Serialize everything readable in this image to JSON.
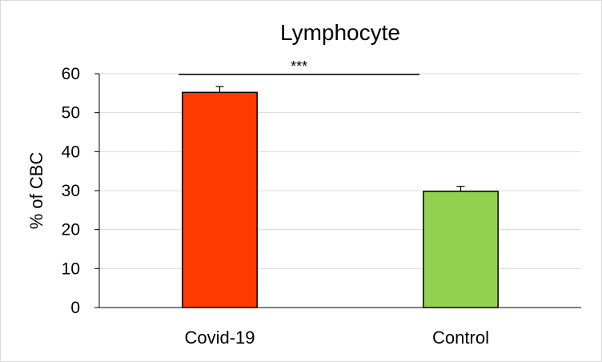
{
  "chart_data": {
    "type": "bar",
    "title": "Lymphocyte",
    "ylabel": "% of CBC",
    "xlabel": "",
    "categories": [
      "Covid-19",
      "Control"
    ],
    "values": [
      55.2,
      29.8
    ],
    "error_bars": [
      1.5,
      1.3
    ],
    "colors": [
      "#ff3a00",
      "#92d050"
    ],
    "ylim": [
      0,
      60
    ],
    "yticks": [
      "0",
      "10",
      "20",
      "30",
      "40",
      "50",
      "60"
    ],
    "grid": true,
    "legend": "none",
    "significance": {
      "between": [
        "Covid-19",
        "Control"
      ],
      "label": "***"
    }
  }
}
